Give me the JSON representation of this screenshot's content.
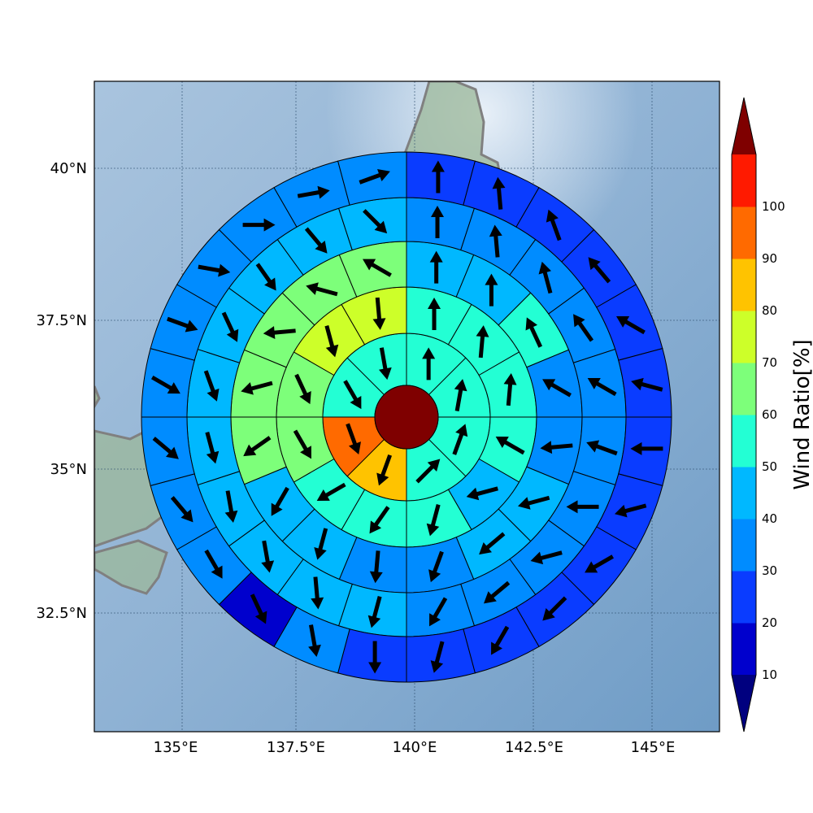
{
  "map": {
    "x_ticks": [
      "135°E",
      "137.5°E",
      "140°E",
      "142.5°E",
      "145°E"
    ],
    "y_ticks": [
      "40°N",
      "37.5°N",
      "35°N",
      "32.5°N"
    ]
  },
  "colorbar": {
    "title": "Wind Ratio[%]",
    "tick_labels": [
      "10",
      "20",
      "30",
      "40",
      "50",
      "60",
      "70",
      "80",
      "90",
      "100"
    ],
    "levels": [
      10,
      20,
      30,
      40,
      50,
      60,
      70,
      80,
      90,
      100
    ],
    "colors": [
      "#0000cd",
      "#0a3cff",
      "#008cff",
      "#00b8ff",
      "#23ffd4",
      "#7dff7a",
      "#cdff29",
      "#ffc300",
      "#ff6a00",
      "#ff1a00"
    ],
    "under_color": "#00007f",
    "over_color": "#7f0000",
    "extend": "both"
  },
  "center_disk": {
    "value": 100,
    "color": "#7f0000"
  },
  "rings": [
    {
      "sectors": 8,
      "values": [
        55,
        55,
        55,
        55,
        85,
        95,
        55,
        55
      ],
      "directions": [
        0,
        10,
        20,
        45,
        200,
        160,
        150,
        170
      ]
    },
    {
      "sectors": 12,
      "values": [
        55,
        55,
        55,
        55,
        45,
        55,
        55,
        55,
        65,
        65,
        75,
        75
      ],
      "directions": [
        0,
        5,
        5,
        300,
        255,
        195,
        215,
        240,
        150,
        155,
        165,
        175
      ]
    },
    {
      "sectors": 16,
      "values": [
        45,
        45,
        55,
        35,
        35,
        45,
        45,
        35,
        35,
        45,
        45,
        65,
        65,
        65,
        65,
        65
      ],
      "directions": [
        0,
        0,
        335,
        300,
        265,
        255,
        230,
        200,
        185,
        195,
        210,
        235,
        255,
        265,
        285,
        300
      ]
    },
    {
      "sectors": 20,
      "values": [
        35,
        35,
        35,
        35,
        35,
        35,
        35,
        35,
        35,
        35,
        45,
        45,
        45,
        45,
        45,
        45,
        45,
        45,
        45,
        45
      ],
      "directions": [
        0,
        355,
        345,
        325,
        300,
        290,
        270,
        255,
        230,
        210,
        195,
        175,
        170,
        170,
        165,
        160,
        155,
        145,
        140,
        135
      ]
    },
    {
      "sectors": 24,
      "values": [
        25,
        25,
        25,
        25,
        25,
        25,
        25,
        25,
        25,
        25,
        25,
        25,
        25,
        35,
        15,
        35,
        35,
        35,
        35,
        35,
        35,
        35,
        35,
        35
      ],
      "directions": [
        0,
        355,
        340,
        320,
        300,
        285,
        270,
        255,
        240,
        225,
        210,
        195,
        180,
        170,
        155,
        150,
        140,
        130,
        120,
        110,
        100,
        90,
        80,
        70
      ]
    }
  ]
}
